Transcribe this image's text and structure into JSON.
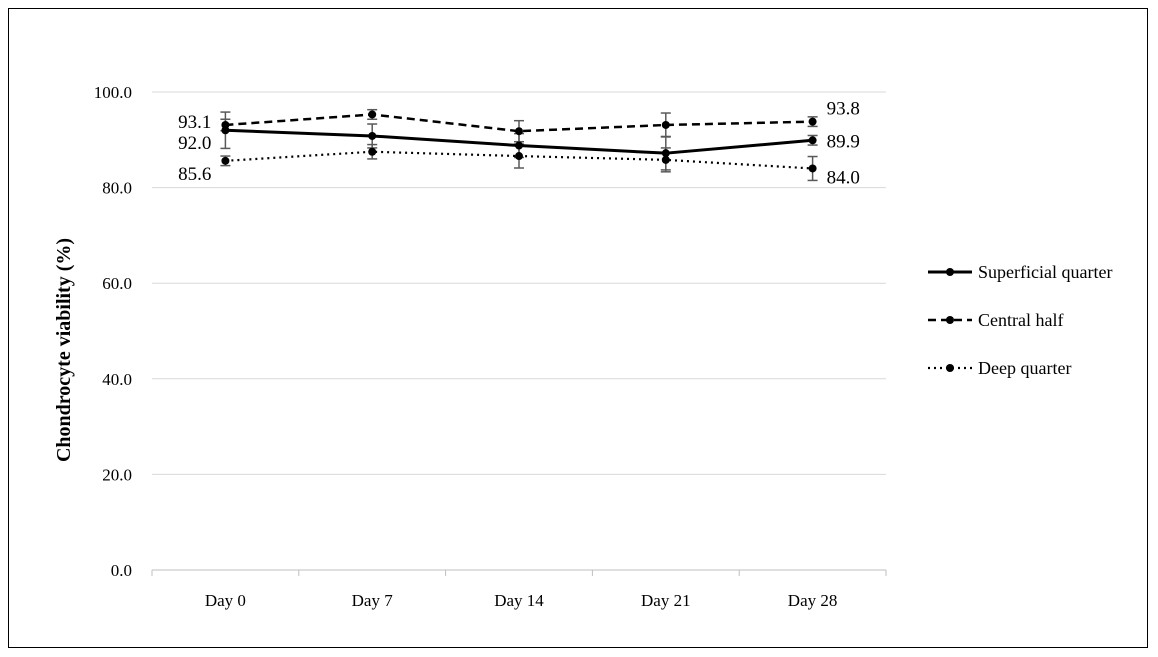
{
  "chart_data": {
    "type": "line",
    "title": "",
    "xlabel": "",
    "ylabel": "Chondrocyte viability (%)",
    "ylim": [
      0,
      100
    ],
    "yticks": [
      "0.0",
      "20.0",
      "40.0",
      "60.0",
      "80.0",
      "100.0"
    ],
    "categories": [
      "Day 0",
      "Day 7",
      "Day 14",
      "Day 21",
      "Day 28"
    ],
    "grid": true,
    "legend_position": "right",
    "series": [
      {
        "name": "Superficial quarter",
        "style": "solid",
        "values": [
          92.0,
          90.8,
          88.8,
          87.2,
          89.9
        ],
        "errors": [
          3.8,
          2.5,
          2.5,
          3.5,
          1.0
        ],
        "point_labels": [
          "92.0",
          "",
          "",
          "",
          "89.9"
        ]
      },
      {
        "name": "Central half",
        "style": "dashed",
        "values": [
          93.1,
          95.3,
          91.8,
          93.1,
          93.8
        ],
        "errors": [
          1.2,
          1.0,
          2.2,
          2.5,
          1.0
        ],
        "point_labels": [
          "93.1",
          "",
          "",
          "",
          "93.8"
        ]
      },
      {
        "name": "Deep quarter",
        "style": "dotted",
        "values": [
          85.6,
          87.5,
          86.6,
          85.8,
          84.0
        ],
        "errors": [
          1.0,
          1.5,
          2.5,
          2.5,
          2.5
        ],
        "point_labels": [
          "85.6",
          "",
          "",
          "",
          "84.0"
        ]
      }
    ]
  }
}
